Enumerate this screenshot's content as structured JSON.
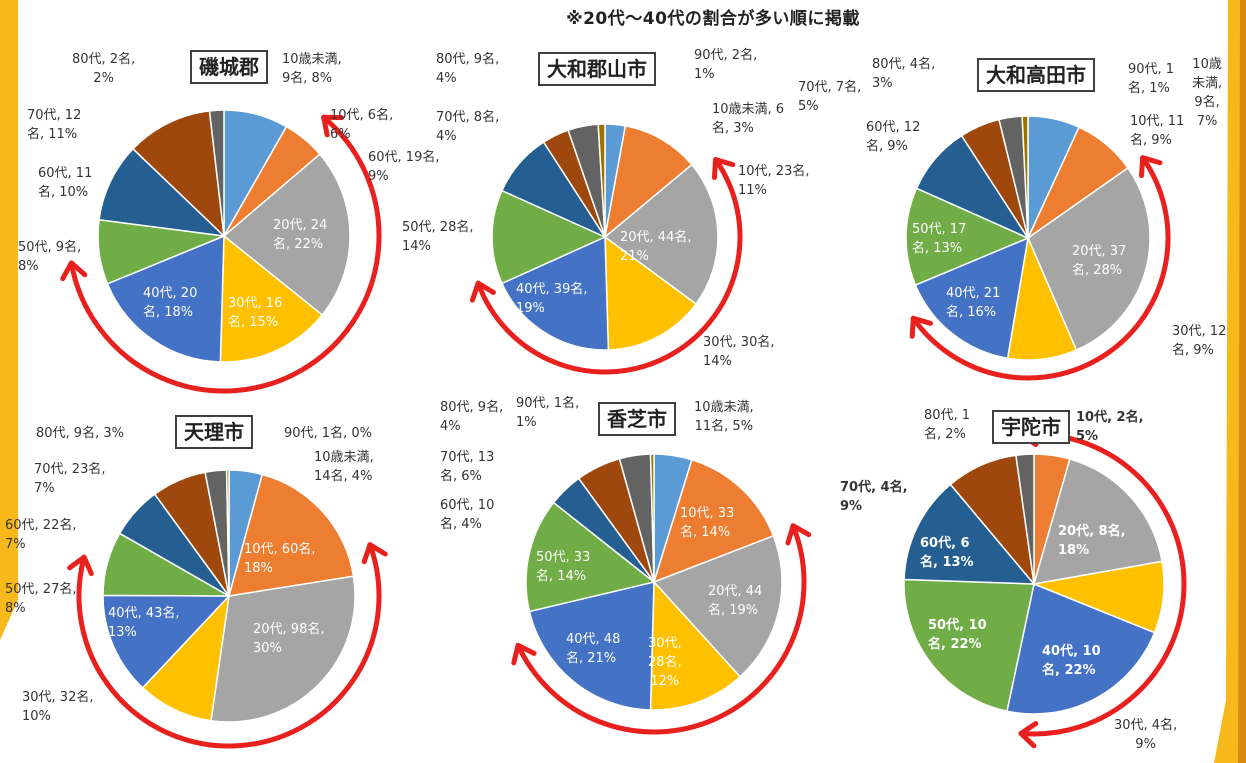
{
  "note": "※20代〜40代の割合が多い順に掲載",
  "colors": {
    "under10": "#5b9bd5",
    "10s": "#ed7d31",
    "20s": "#a5a5a5",
    "30s": "#ffc000",
    "40s": "#4472c4",
    "50s": "#70ad47",
    "60s": "#255e91",
    "70s": "#9e480e",
    "80s": "#636363",
    "90s": "#997300",
    "arrow": "#e8201e",
    "frame": "#f7b81c"
  },
  "charts": [
    {
      "title": "磯城郡",
      "labels": [
        {
          "l1": "10歳未満,",
          "l2": "9名, 8%"
        },
        {
          "l1": "10代, 6名,",
          "l2": "6%"
        },
        {
          "l1": "20代, 24",
          "l2": "名, 22%"
        },
        {
          "l1": "30代, 16",
          "l2": "名, 15%"
        },
        {
          "l1": "40代, 20",
          "l2": "名, 18%"
        },
        {
          "l1": "50代, 9名,",
          "l2": "8%"
        },
        {
          "l1": "60代, 11",
          "l2": "名, 10%"
        },
        {
          "l1": "70代, 12",
          "l2": "名, 11%"
        },
        {
          "l1": "80代, 2名,",
          "l2": "2%"
        }
      ]
    },
    {
      "title": "大和郡山市",
      "labels": [
        {
          "l1": "10歳未満, 6",
          "l2": "名, 3%"
        },
        {
          "l1": "10代, 23名,",
          "l2": "11%"
        },
        {
          "l1": "20代, 44名,",
          "l2": "21%"
        },
        {
          "l1": "30代, 30名,",
          "l2": "14%"
        },
        {
          "l1": "40代, 39名,",
          "l2": "19%"
        },
        {
          "l1": "50代, 28名,",
          "l2": "14%"
        },
        {
          "l1": "60代, 19名,",
          "l2": "9%"
        },
        {
          "l1": "70代, 8名,",
          "l2": "4%"
        },
        {
          "l1": "80代, 9名,",
          "l2": "4%"
        },
        {
          "l1": "90代, 2名,",
          "l2": "1%"
        }
      ]
    },
    {
      "title": "大和高田市",
      "labels": [
        {
          "l1": "10歳",
          "l2": "未満,",
          "l3": "9名,",
          "l4": "7%"
        },
        {
          "l1": "10代, 11",
          "l2": "名, 9%"
        },
        {
          "l1": "20代, 37",
          "l2": "名, 28%"
        },
        {
          "l1": "30代, 12",
          "l2": "名, 9%"
        },
        {
          "l1": "40代, 21",
          "l2": "名, 16%"
        },
        {
          "l1": "50代, 17",
          "l2": "名, 13%"
        },
        {
          "l1": "60代, 12",
          "l2": "名, 9%"
        },
        {
          "l1": "70代, 7名,",
          "l2": "5%"
        },
        {
          "l1": "80代, 4名,",
          "l2": "3%"
        },
        {
          "l1": "90代, 1",
          "l2": "名, 1%"
        }
      ]
    },
    {
      "title": "天理市",
      "labels": [
        {
          "l1": "10歳未満,",
          "l2": "14名, 4%"
        },
        {
          "l1": "10代, 60名,",
          "l2": "18%"
        },
        {
          "l1": "20代, 98名,",
          "l2": "30%"
        },
        {
          "l1": "30代, 32名,",
          "l2": "10%"
        },
        {
          "l1": "40代, 43名,",
          "l2": "13%"
        },
        {
          "l1": "50代, 27名,",
          "l2": "8%"
        },
        {
          "l1": "60代, 22名,",
          "l2": "7%"
        },
        {
          "l1": "70代, 23名,",
          "l2": "7%"
        },
        {
          "l1": "80代, 9名, 3%"
        },
        {
          "l1": "90代, 1名, 0%"
        }
      ]
    },
    {
      "title": "香芝市",
      "labels": [
        {
          "l1": "10歳未満,",
          "l2": "11名, 5%"
        },
        {
          "l1": "10代, 33",
          "l2": "名, 14%"
        },
        {
          "l1": "20代, 44",
          "l2": "名, 19%"
        },
        {
          "l1": "30代,",
          "l2": "28名,",
          "l3": "12%"
        },
        {
          "l1": "40代, 48",
          "l2": "名, 21%"
        },
        {
          "l1": "50代, 33",
          "l2": "名, 14%"
        },
        {
          "l1": "60代, 10",
          "l2": "名, 4%"
        },
        {
          "l1": "70代, 13",
          "l2": "名, 6%"
        },
        {
          "l1": "80代, 9名,",
          "l2": "4%"
        },
        {
          "l1": "90代, 1名,",
          "l2": "1%"
        }
      ]
    },
    {
      "title": "宇陀市",
      "labels": [
        {
          "l1": "10代, 2名,",
          "l2": "5%"
        },
        {
          "l1": "20代, 8名,",
          "l2": "18%"
        },
        {
          "l1": "30代, 4名,",
          "l2": "9%"
        },
        {
          "l1": "40代, 10",
          "l2": "名, 22%"
        },
        {
          "l1": "50代, 10",
          "l2": "名, 22%"
        },
        {
          "l1": "60代, 6",
          "l2": "名, 13%"
        },
        {
          "l1": "70代, 4名,",
          "l2": "9%"
        },
        {
          "l1": "80代, 1",
          "l2": "名, 2%"
        }
      ]
    }
  ],
  "chart_data": [
    {
      "type": "pie",
      "title": "磯城郡",
      "categories": [
        "10歳未満",
        "10代",
        "20代",
        "30代",
        "40代",
        "50代",
        "60代",
        "70代",
        "80代"
      ],
      "values": [
        9,
        6,
        24,
        16,
        20,
        9,
        11,
        12,
        2
      ],
      "percents": [
        8,
        6,
        22,
        15,
        18,
        8,
        10,
        11,
        2
      ]
    },
    {
      "type": "pie",
      "title": "大和郡山市",
      "categories": [
        "10歳未満",
        "10代",
        "20代",
        "30代",
        "40代",
        "50代",
        "60代",
        "70代",
        "80代",
        "90代"
      ],
      "values": [
        6,
        23,
        44,
        30,
        39,
        28,
        19,
        8,
        9,
        2
      ],
      "percents": [
        3,
        11,
        21,
        14,
        19,
        14,
        9,
        4,
        4,
        1
      ]
    },
    {
      "type": "pie",
      "title": "大和高田市",
      "categories": [
        "10歳未満",
        "10代",
        "20代",
        "30代",
        "40代",
        "50代",
        "60代",
        "70代",
        "80代",
        "90代"
      ],
      "values": [
        9,
        11,
        37,
        12,
        21,
        17,
        12,
        7,
        4,
        1
      ],
      "percents": [
        7,
        9,
        28,
        9,
        16,
        13,
        9,
        5,
        3,
        1
      ]
    },
    {
      "type": "pie",
      "title": "天理市",
      "categories": [
        "10歳未満",
        "10代",
        "20代",
        "30代",
        "40代",
        "50代",
        "60代",
        "70代",
        "80代",
        "90代"
      ],
      "values": [
        14,
        60,
        98,
        32,
        43,
        27,
        22,
        23,
        9,
        1
      ],
      "percents": [
        4,
        18,
        30,
        10,
        13,
        8,
        7,
        7,
        3,
        0
      ]
    },
    {
      "type": "pie",
      "title": "香芝市",
      "categories": [
        "10歳未満",
        "10代",
        "20代",
        "30代",
        "40代",
        "50代",
        "60代",
        "70代",
        "80代",
        "90代"
      ],
      "values": [
        11,
        33,
        44,
        28,
        48,
        33,
        10,
        13,
        9,
        1
      ],
      "percents": [
        5,
        14,
        19,
        12,
        21,
        14,
        4,
        6,
        4,
        1
      ]
    },
    {
      "type": "pie",
      "title": "宇陀市",
      "categories": [
        "10代",
        "20代",
        "30代",
        "40代",
        "50代",
        "60代",
        "70代",
        "80代"
      ],
      "values": [
        2,
        8,
        4,
        10,
        10,
        6,
        4,
        1
      ],
      "percents": [
        5,
        18,
        9,
        22,
        22,
        13,
        9,
        2
      ]
    }
  ]
}
